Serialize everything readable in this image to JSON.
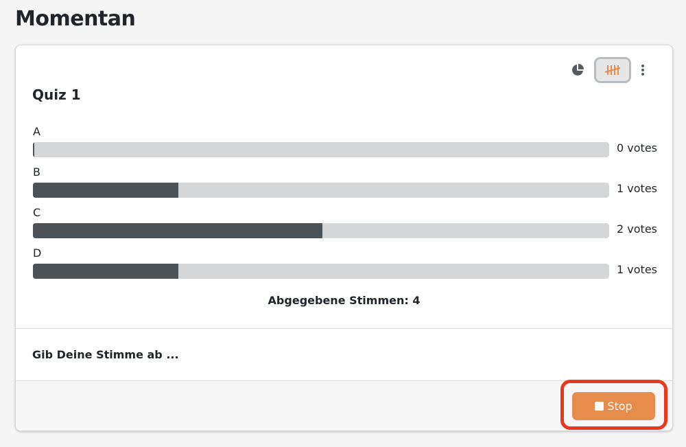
{
  "page": {
    "title": "Momentan"
  },
  "poll": {
    "title": "Quiz 1",
    "options": [
      {
        "label": "A",
        "votes_text": "0 votes",
        "percent": 0
      },
      {
        "label": "B",
        "votes_text": "1 votes",
        "percent": 25
      },
      {
        "label": "C",
        "votes_text": "2 votes",
        "percent": 50
      },
      {
        "label": "D",
        "votes_text": "1 votes",
        "percent": 25
      }
    ],
    "total": "Abgegebene Stimmen: 4",
    "prompt": "Gib Deine Stimme ab ..."
  },
  "toolbar": {
    "icons": [
      "pie-chart-icon",
      "tally-icon",
      "more-vertical-icon"
    ],
    "active": "tally-icon"
  },
  "footer": {
    "stop_label": "Stop"
  },
  "colors": {
    "accent": "#e68c4d",
    "bar_fill": "#4d5257",
    "highlight": "#e8391f"
  }
}
